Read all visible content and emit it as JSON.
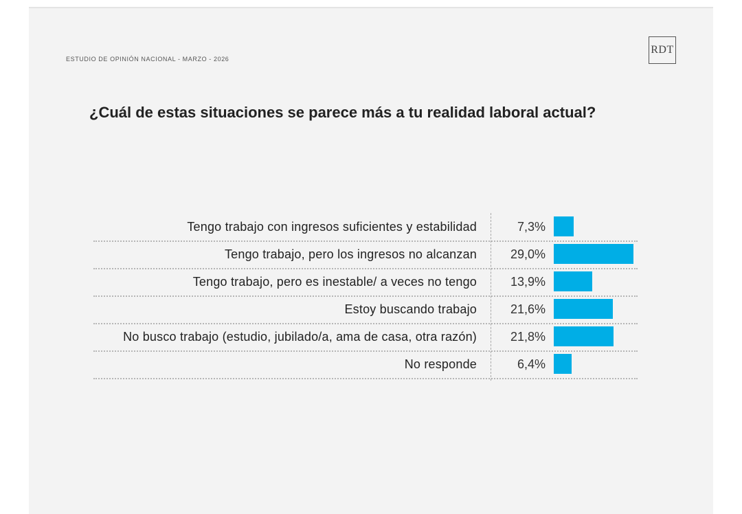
{
  "header": {
    "study": "ESTUDIO DE OPINIÓN NACIONAL - MARZO - 2026",
    "logo": "RDT"
  },
  "colors": {
    "bar": "#00aee6",
    "background": "#f3f3f3"
  },
  "chart_data": {
    "type": "bar",
    "orientation": "horizontal",
    "title": "¿Cuál de estas situaciones se parece más a tu realidad laboral actual?",
    "categories": [
      "Tengo trabajo con ingresos suficientes y estabilidad",
      "Tengo trabajo, pero los ingresos no alcanzan",
      "Tengo trabajo, pero es inestable/ a veces no tengo",
      "Estoy buscando trabajo",
      "No busco trabajo (estudio, jubilado/a, ama de casa, otra razón)",
      "No responde"
    ],
    "values": [
      7.3,
      29.0,
      13.9,
      21.6,
      21.8,
      6.4
    ],
    "value_labels": [
      "7,3%",
      "29,0%",
      "13,9%",
      "21,6%",
      "21,8%",
      "6,4%"
    ],
    "unit": "%",
    "xlim": [
      0,
      30
    ],
    "grid": false,
    "legend": "none"
  }
}
